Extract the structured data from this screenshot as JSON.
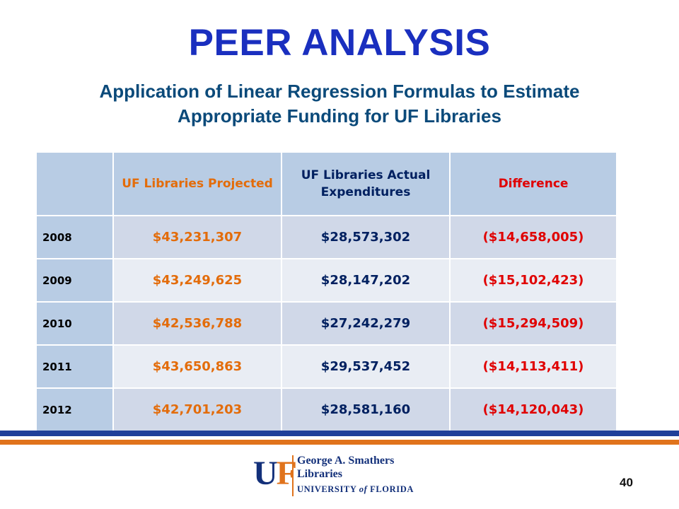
{
  "slide": {
    "title": "PEER ANALYSIS",
    "subtitle": "Application of Linear Regression Formulas to Estimate Appropriate Funding for UF Libraries",
    "page_number": "40"
  },
  "table": {
    "headers": [
      "",
      "UF Libraries Projected",
      "UF Libraries Actual Expenditures",
      "Difference"
    ],
    "rows": [
      {
        "year": "2008",
        "projected": "$43,231,307",
        "actual": "$28,573,302",
        "difference": "($14,658,005)"
      },
      {
        "year": "2009",
        "projected": "$43,249,625",
        "actual": "$28,147,202",
        "difference": "($15,102,423)"
      },
      {
        "year": "2010",
        "projected": "$42,536,788",
        "actual": "$27,242,279",
        "difference": "($15,294,509)"
      },
      {
        "year": "2011",
        "projected": "$43,650,863",
        "actual": "$29,537,452",
        "difference": "($14,113,411)"
      },
      {
        "year": "2012",
        "projected": "$42,701,203",
        "actual": "$28,581,160",
        "difference": "($14,120,043)"
      }
    ]
  },
  "logo": {
    "mark_u": "U",
    "mark_f": "F",
    "line1": "George A. Smathers",
    "line2": "Libraries",
    "line3_a": "UNIVERSITY ",
    "line3_b": "of",
    "line3_c": " FLORIDA"
  },
  "colors": {
    "title": "#1a2fbf",
    "subtitle": "#0b4a7a",
    "header_bg": "#b8cce4",
    "row_dark": "#d0d8e8",
    "row_light": "#e9edf4",
    "projected": "#e36c0a",
    "actual": "#002060",
    "difference": "#e00000",
    "rule_blue": "#1f3f99",
    "rule_orange": "#e0731c"
  }
}
